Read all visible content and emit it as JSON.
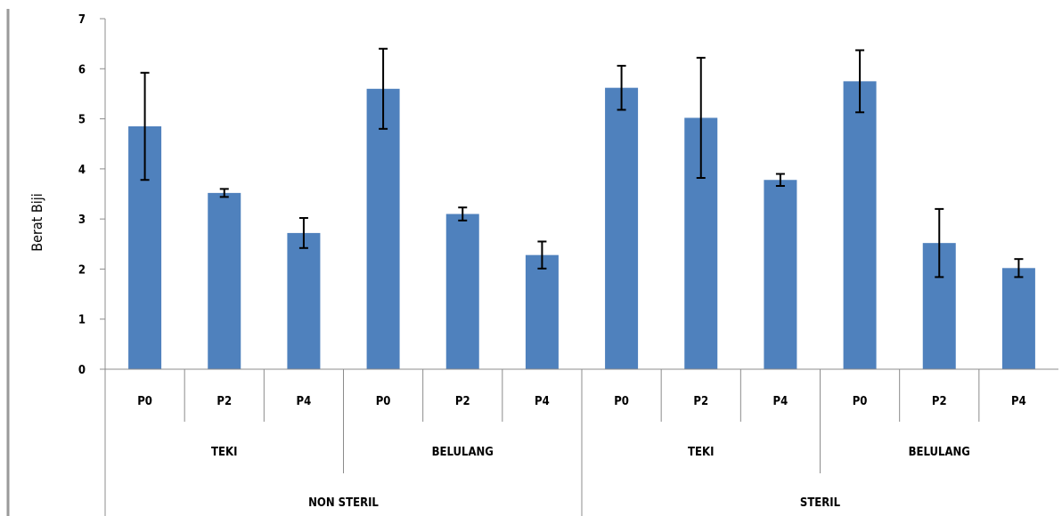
{
  "chart_data": {
    "type": "bar",
    "ylabel": "Berat Biji",
    "ylim": [
      0,
      7
    ],
    "yticks": [
      0,
      1,
      2,
      3,
      4,
      5,
      6,
      7
    ],
    "categories": [
      "P0",
      "P2",
      "P4",
      "P0",
      "P2",
      "P4",
      "P0",
      "P2",
      "P4",
      "P0",
      "P2",
      "P4"
    ],
    "values": [
      4.85,
      3.52,
      2.72,
      5.6,
      3.1,
      2.28,
      5.62,
      5.02,
      3.78,
      5.75,
      2.52,
      2.02
    ],
    "errors": [
      1.07,
      0.08,
      0.3,
      0.8,
      0.13,
      0.27,
      0.44,
      1.2,
      0.12,
      0.62,
      0.68,
      0.18
    ],
    "group_level1": [
      {
        "label": "TEKI",
        "span": 3
      },
      {
        "label": "BELULANG",
        "span": 3
      },
      {
        "label": "TEKI",
        "span": 3
      },
      {
        "label": "BELULANG",
        "span": 3
      }
    ],
    "group_level2": [
      {
        "label": "NON STERIL",
        "span": 6
      },
      {
        "label": "STERIL",
        "span": 6
      }
    ],
    "grid": false,
    "legend": "none",
    "bar_color": "#4f81bd"
  }
}
